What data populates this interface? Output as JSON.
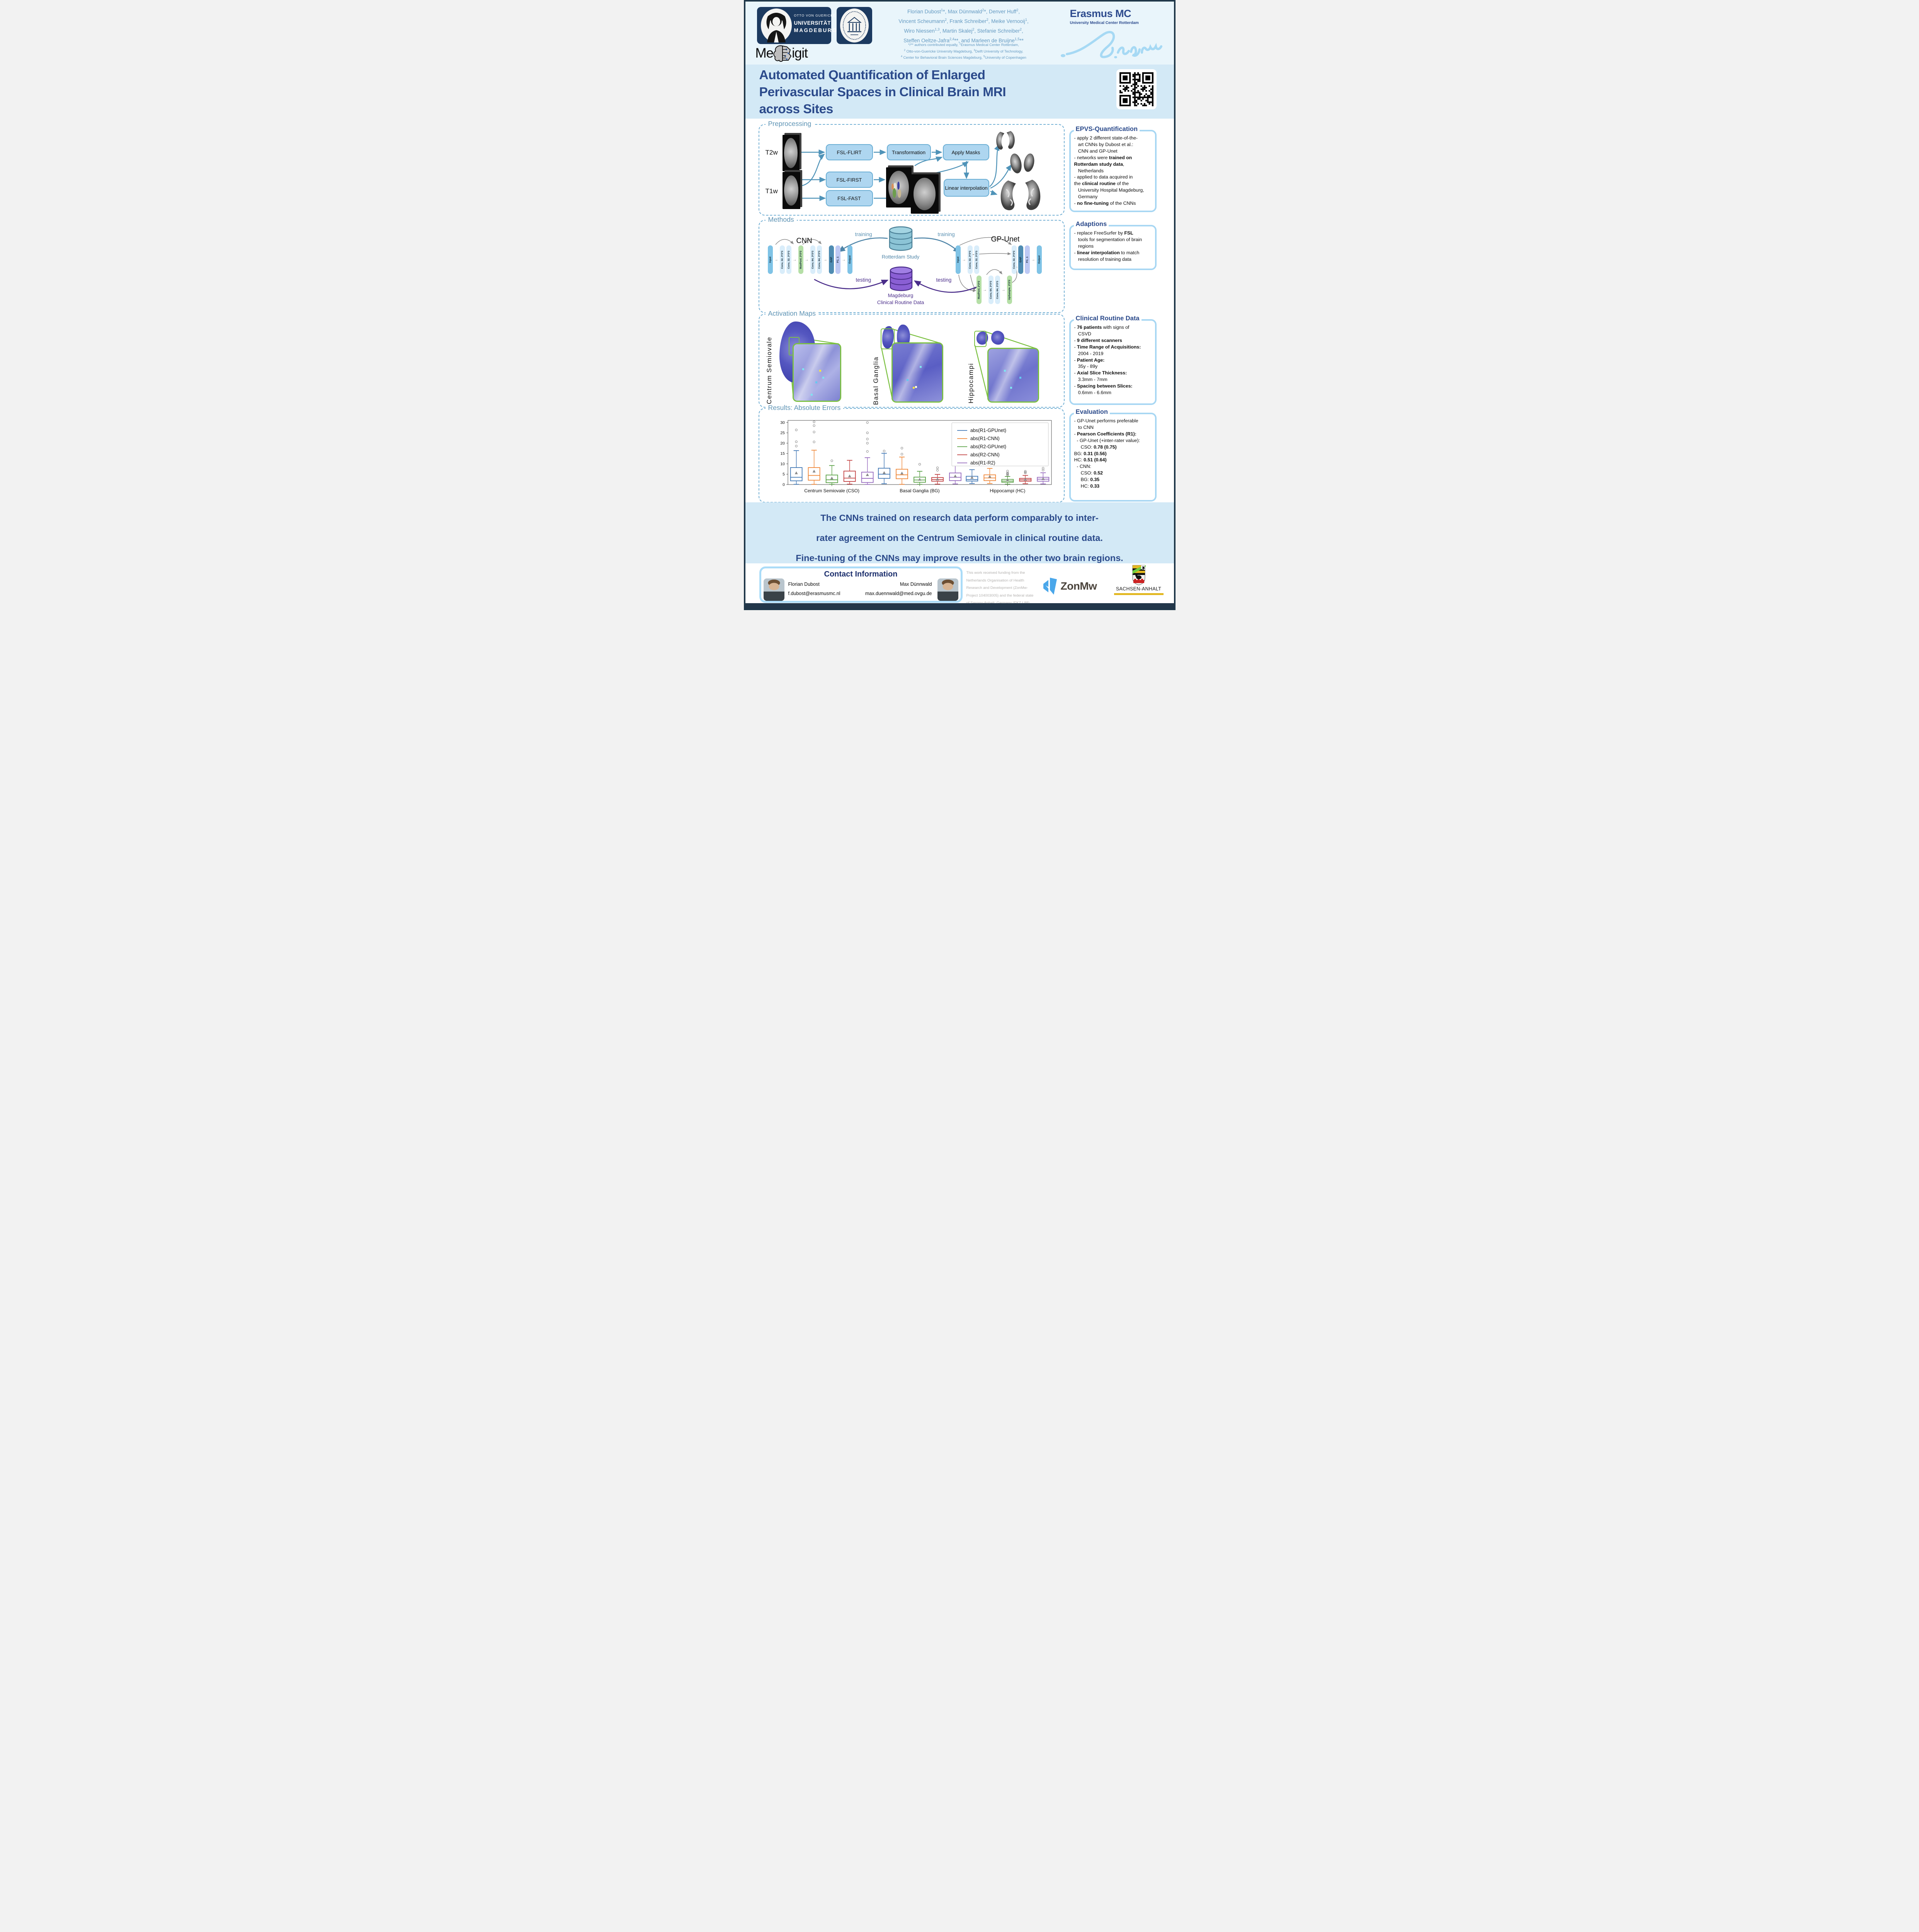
{
  "header": {
    "ovgu": {
      "l1": "OTTO VON GUERICKE",
      "l2": "UNIVERSITÄT",
      "l3": "MAGDEBURG"
    },
    "medigit": {
      "pre": "Me",
      "post": "igit"
    },
    "authors": [
      [
        [
          "Florian Dubost",
          0
        ],
        [
          "1",
          2
        ],
        [
          "*, Max Dünnwald",
          0
        ],
        [
          "2",
          2
        ],
        [
          "*, Denver Huff",
          0
        ],
        [
          "2",
          2
        ],
        [
          ",",
          0
        ]
      ],
      [
        [
          "Vincent Scheumann",
          0
        ],
        [
          "2",
          2
        ],
        [
          ", Frank Schreiber",
          0
        ],
        [
          "2",
          2
        ],
        [
          ", Meike Vernooij",
          0
        ],
        [
          "1",
          2
        ],
        [
          ",",
          0
        ]
      ],
      [
        [
          "Wiro Niessen",
          0
        ],
        [
          "1,3",
          2
        ],
        [
          ", Martin Skalej",
          0
        ],
        [
          "2",
          2
        ],
        [
          ", Stefanie Schreiber",
          0
        ],
        [
          "2",
          2
        ],
        [
          ",",
          0
        ]
      ],
      [
        [
          "Steffen Oeltze-Jafra",
          0
        ],
        [
          "2,4",
          2
        ],
        [
          "**, and Marleen de Bruijne",
          0
        ],
        [
          "1,5",
          2
        ],
        [
          "**",
          0
        ]
      ]
    ],
    "affiliations": [
      [
        [
          "*/** authors contributed equally, ",
          0
        ],
        [
          "1",
          2
        ],
        [
          "Erasmus Medical Center Rotterdam,",
          0
        ]
      ],
      [
        [
          "2",
          2
        ],
        [
          " Otto-von-Guericke University Magdeburg, ",
          0
        ],
        [
          "3",
          2
        ],
        [
          "Delft University of Technology,",
          0
        ]
      ],
      [
        [
          "4",
          2
        ],
        [
          " Center for Behavioral Brain Sciences Magdeburg, ",
          0
        ],
        [
          "5",
          2
        ],
        [
          "University of Copenhagen",
          0
        ]
      ]
    ],
    "erasmus": {
      "name": "Erasmus MC",
      "sub": "University Medical Center Rotterdam"
    }
  },
  "title_block": {
    "lines": [
      "Automated Quantification of Enlarged",
      "Perivascular Spaces in Clinical Brain MRI",
      "across Sites"
    ]
  },
  "preprocessing": {
    "title": "Preprocessing",
    "t2w": "T2w",
    "t1w": "T1w",
    "flirt": "FSL-FLIRT",
    "transformation": "Transformation",
    "apply_masks": "Apply Masks",
    "first": "FSL-FIRST",
    "fast": "FSL-FAST",
    "interp": "Linear interpolation"
  },
  "methods": {
    "title": "Methods",
    "cnn_title": "CNN",
    "gpunet_title": "GP-Unet",
    "training": "training",
    "testing": "testing",
    "rotterdam": "Rotterdam Study",
    "magdeburg_l1": "Magdeburg",
    "magdeburg_l2": "Clinical Routine Data",
    "cnn_layers": [
      {
        "label": "Input",
        "type": "io"
      },
      {
        "label": "Conv, 32, 3*3*3",
        "type": "conv"
      },
      {
        "label": "Conv, 32, 3*3*3",
        "type": "conv"
      },
      {
        "label": "MaxPool, 2*2*2",
        "type": "pool"
      },
      {
        "label": "Conv, 64, 3*3*3",
        "type": "conv"
      },
      {
        "label": "Conv, 64, 3*3*3",
        "type": "conv"
      },
      {
        "label": "GAP",
        "type": "gap"
      },
      {
        "label": "FC, 1",
        "type": "fc"
      },
      {
        "label": "Output",
        "type": "io"
      }
    ],
    "gpu_top_left": [
      {
        "label": "Input",
        "type": "io"
      },
      {
        "label": "Conv, 32, 3*3*3",
        "type": "conv"
      },
      {
        "label": "Conv, 32, 3*3*3",
        "type": "conv"
      }
    ],
    "gpu_top_right": [
      {
        "label": "Conv, 32, 3*3*3",
        "type": "conv"
      },
      {
        "label": "GAP",
        "type": "gap"
      },
      {
        "label": "FC, 1",
        "type": "fc"
      },
      {
        "label": "Output",
        "type": "io"
      }
    ],
    "gpu_bottom": [
      {
        "label": "MaxPool, 2*2*2",
        "type": "pool"
      },
      {
        "label": "Conv, 64, 3*3*3",
        "type": "conv"
      },
      {
        "label": "Conv, 64, 3*3*3",
        "type": "conv"
      },
      {
        "label": "UpSample, 2*2*2",
        "type": "pool"
      }
    ]
  },
  "activation": {
    "title": "Activation Maps",
    "labels": [
      "Centrum Semiovale",
      "Basal Ganglia",
      "Hippocampi"
    ]
  },
  "results": {
    "title": "Results: Absolute Errors"
  },
  "sidebar": {
    "epvs": {
      "title": "EPVS-Quantification",
      "lines": [
        [
          [
            "- apply 2 different state-of-the-",
            0
          ]
        ],
        [
          [
            "   art CNNs by Dubost et al.:",
            0
          ]
        ],
        [
          [
            "   CNN and GP-Unet",
            0
          ]
        ],
        [
          [
            "- networks were ",
            0
          ],
          [
            "trained on",
            1
          ]
        ],
        [
          [
            "Rotterdam study data",
            1
          ],
          [
            ",",
            0
          ]
        ],
        [
          [
            "   Netherlands",
            0
          ]
        ],
        [
          [
            "- applied to data acquired in",
            0
          ]
        ],
        [
          [
            "the ",
            0
          ],
          [
            "clinical routine",
            1
          ],
          [
            " of the",
            0
          ]
        ],
        [
          [
            "   University Hospital Magdeburg,",
            0
          ]
        ],
        [
          [
            "   Germany",
            0
          ]
        ],
        [
          [
            "- ",
            0
          ],
          [
            "no fine-tuning",
            1
          ],
          [
            " of the CNNs",
            0
          ]
        ]
      ]
    },
    "adaptions": {
      "title": "Adaptions",
      "lines": [
        [
          [
            "- replace FreeSurfer by ",
            0
          ],
          [
            "FSL",
            1
          ]
        ],
        [
          [
            "   tools for segmentation of brain",
            0
          ]
        ],
        [
          [
            "   regions",
            0
          ]
        ],
        [
          [
            "- ",
            0
          ],
          [
            "linear interpolation",
            1
          ],
          [
            " to match",
            0
          ]
        ],
        [
          [
            "   resolution of training data",
            0
          ]
        ]
      ]
    },
    "clinical": {
      "title": "Clinical Routine Data",
      "lines": [
        [
          [
            "- ",
            0
          ],
          [
            "76 patients",
            1
          ],
          [
            " with signs of",
            0
          ]
        ],
        [
          [
            "   CSVD",
            0
          ]
        ],
        [
          [
            "- ",
            0
          ],
          [
            "9 different scanners",
            1
          ]
        ],
        [
          [
            "- ",
            0
          ],
          [
            "Time Range of Acquisitions:",
            1
          ]
        ],
        [
          [
            "   2004 - 2019",
            0
          ]
        ],
        [
          [
            "- ",
            0
          ],
          [
            "Patient Age:",
            1
          ]
        ],
        [
          [
            "   35y - 89y",
            0
          ]
        ],
        [
          [
            "- ",
            0
          ],
          [
            "Axial Slice Thickness:",
            1
          ]
        ],
        [
          [
            "   3.3mm - 7mm",
            0
          ]
        ],
        [
          [
            "- ",
            0
          ],
          [
            "Spacing between Slices:",
            1
          ]
        ],
        [
          [
            "   0.6mm - 6.6mm",
            0
          ]
        ]
      ]
    },
    "evaluation": {
      "title": "Evaluation",
      "lines": [
        [
          [
            "- GP-Unet performs preferable",
            0
          ]
        ],
        [
          [
            "   to CNN",
            0
          ]
        ],
        [
          [
            "- ",
            0
          ],
          [
            "Pearson Coefficients (R1):",
            1
          ]
        ],
        [
          [
            "  - GP-Unet (+inter-rater value):",
            0
          ]
        ],
        [
          [
            "     CSO: ",
            0
          ],
          [
            "0.78 (0.75)",
            1
          ]
        ],
        [
          [
            "BG: ",
            0
          ],
          [
            "0.31 (0.56)",
            1
          ]
        ],
        [
          [
            "HC: ",
            0
          ],
          [
            "0.51 (0.64)",
            1
          ]
        ],
        [
          [
            "  - CNN:",
            0
          ]
        ],
        [
          [
            "     CSO: ",
            0
          ],
          [
            "0.52",
            1
          ]
        ],
        [
          [
            "     BG: ",
            0
          ],
          [
            "0.35",
            1
          ]
        ],
        [
          [
            "     HC: ",
            0
          ],
          [
            "0.33",
            1
          ]
        ]
      ]
    }
  },
  "conclusion": {
    "lines": [
      "The CNNs trained on research data perform comparably to inter-",
      "rater agreement on the Centrum Semiovale in clinical routine data.",
      "Fine-tuning of the CNNs may improve results in the other two brain regions."
    ]
  },
  "footer": {
    "contact": {
      "title": "Contact Information",
      "p1_name": "Florian Dubost",
      "p1_email": "f.dubost@erasmusmc.nl",
      "p2_name": "Max Dünnwald",
      "p2_email": "max.duennwald@med.ovgu.de"
    },
    "funding_lines": [
      "This work received funding from the",
      "Netherlands Organisation of Health",
      "Research and Development (ZonMw-",
      "Project 104003005) and the federal state",
      "of Saxony-Anhalt, Germany (FKZ I 88)."
    ],
    "zonmw": "ZonMw",
    "sachsen": "SACHSEN-ANHALT"
  },
  "chart_data": {
    "type": "boxplot",
    "title": "Results: Absolute Errors",
    "categories": [
      "Centrum Semiovale (CSO)",
      "Basal Ganglia (BG)",
      "Hippocampi (HC)"
    ],
    "ylim": [
      0,
      31
    ],
    "yticks": [
      0,
      5,
      10,
      15,
      20,
      25,
      30
    ],
    "legend_position": "upper right",
    "series": [
      {
        "name": "abs(R1-GPUnet)",
        "color": "#3f76b4",
        "boxes": [
          {
            "lo": 0.1,
            "q1": 1.8,
            "med": 3.5,
            "q3": 8.2,
            "hi": 16.4,
            "mean": 5.6,
            "out": [
              18.6,
              20.7,
              26.4
            ]
          },
          {
            "lo": 0.4,
            "q1": 3.0,
            "med": 5.0,
            "q3": 7.9,
            "hi": 15.1,
            "mean": 5.7,
            "out": [
              16.2
            ]
          },
          {
            "lo": 0.5,
            "q1": 1.7,
            "med": 2.4,
            "q3": 4.0,
            "hi": 7.2,
            "mean": 3.4,
            "out": [
              10.2,
              11.5,
              13.0
            ]
          }
        ]
      },
      {
        "name": "abs(R1-CNN)",
        "color": "#ef8636",
        "boxes": [
          {
            "lo": 0.1,
            "q1": 2.1,
            "med": 4.4,
            "q3": 8.2,
            "hi": 16.6,
            "mean": 6.4,
            "out": [
              20.6,
              25.4,
              28.5,
              30.3
            ]
          },
          {
            "lo": 0.1,
            "q1": 2.8,
            "med": 4.7,
            "q3": 7.4,
            "hi": 13.3,
            "mean": 5.5,
            "out": [
              14.7,
              17.6
            ]
          },
          {
            "lo": 0.5,
            "q1": 1.9,
            "med": 3.2,
            "q3": 4.7,
            "hi": 7.8,
            "mean": 3.9,
            "out": [
              9.6,
              11.2,
              13.5
            ]
          }
        ]
      },
      {
        "name": "abs(R2-GPUnet)",
        "color": "#58a044",
        "boxes": [
          {
            "lo": 0.1,
            "q1": 0.9,
            "med": 2.3,
            "q3": 4.6,
            "hi": 9.2,
            "mean": 3.1,
            "out": [
              11.5
            ]
          },
          {
            "lo": 0.1,
            "q1": 1.1,
            "med": 2.2,
            "q3": 3.6,
            "hi": 6.4,
            "mean": 2.5,
            "out": [
              9.8
            ]
          },
          {
            "lo": 0.2,
            "q1": 1.1,
            "med": 1.7,
            "q3": 2.5,
            "hi": 3.9,
            "mean": 2.2,
            "out": [
              4.6,
              5.0,
              5.3,
              5.6,
              6.5
            ]
          }
        ]
      },
      {
        "name": "abs(R2-CNN)",
        "color": "#c03d3e",
        "boxes": [
          {
            "lo": 0.2,
            "q1": 1.5,
            "med": 3.1,
            "q3": 6.5,
            "hi": 11.7,
            "mean": 4.1,
            "out": []
          },
          {
            "lo": 0.2,
            "q1": 1.6,
            "med": 2.4,
            "q3": 3.4,
            "hi": 4.9,
            "mean": 2.6,
            "out": [
              6.9,
              8.1
            ]
          },
          {
            "lo": 0.4,
            "q1": 1.6,
            "med": 2.3,
            "q3": 3.0,
            "hi": 4.4,
            "mean": 2.5,
            "out": [
              5.6,
              6.0,
              6.4
            ]
          }
        ]
      },
      {
        "name": "abs(R1-R2)",
        "color": "#9467bd",
        "boxes": [
          {
            "lo": 0.05,
            "q1": 1.0,
            "med": 3.0,
            "q3": 6.0,
            "hi": 13.0,
            "mean": 4.7,
            "out": [
              16.0,
              20.0,
              22.0,
              25.0,
              30.0
            ]
          },
          {
            "lo": 0.3,
            "q1": 1.9,
            "med": 3.5,
            "q3": 5.6,
            "hi": 9.2,
            "mean": 4.1,
            "out": [
              10.5,
              17.5
            ]
          },
          {
            "lo": 0.3,
            "q1": 1.6,
            "med": 2.6,
            "q3": 3.5,
            "hi": 5.7,
            "mean": 2.8,
            "out": [
              7.0,
              7.9
            ]
          }
        ]
      }
    ]
  }
}
